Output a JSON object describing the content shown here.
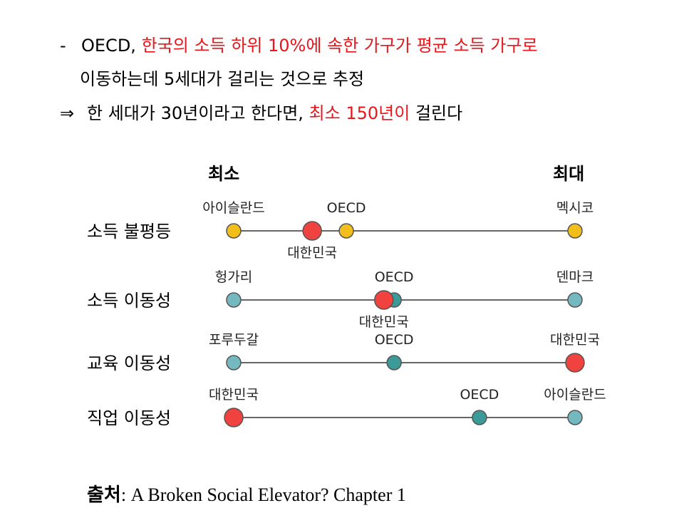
{
  "header": {
    "line1_dash": "-",
    "line1_prefix": "OECD, ",
    "line1_highlight": "한국의 소득 하위 10%에 속한 가구가 평균 소득 가구로",
    "line2": "이동하는데 5세대가 걸리는 것으로 추정",
    "line3_arrow": "⇒",
    "line3_prefix": "한 세대가 30년이라고 한다면, ",
    "line3_highlight": "최소 150년이",
    "line3_suffix": " 걸린다"
  },
  "diagram": {
    "min_label": "최소",
    "max_label": "최대",
    "colors": {
      "oecd_teal": "#3c9a98",
      "korea_red": "#f0423e",
      "gold": "#f2be1c",
      "light_teal": "#74b8c0",
      "line": "#666666"
    },
    "rows": [
      {
        "label": "소득 불평등",
        "markers": [
          {
            "name": "아이슬란드",
            "pos": 0.0,
            "color": "gold",
            "label_side": "above"
          },
          {
            "name": "대한민국",
            "pos": 0.23,
            "color": "korea_red",
            "big": true,
            "label_side": "below"
          },
          {
            "name": "OECD",
            "pos": 0.33,
            "color": "gold",
            "label_side": "above"
          },
          {
            "name": "멕시코",
            "pos": 1.0,
            "color": "gold",
            "label_side": "above"
          }
        ]
      },
      {
        "label": "소득 이동성",
        "markers": [
          {
            "name": "헝가리",
            "pos": 0.0,
            "color": "light_teal",
            "label_side": "above"
          },
          {
            "name": "OECD",
            "pos": 0.47,
            "color": "oecd_teal",
            "label_side": "above"
          },
          {
            "name": "대한민국",
            "pos": 0.44,
            "color": "korea_red",
            "big": true,
            "label_side": "below"
          },
          {
            "name": "덴마크",
            "pos": 1.0,
            "color": "light_teal",
            "label_side": "above"
          }
        ]
      },
      {
        "label": "교육 이동성",
        "markers": [
          {
            "name": "포루두갈",
            "pos": 0.0,
            "color": "light_teal",
            "label_side": "above"
          },
          {
            "name": "OECD",
            "pos": 0.47,
            "color": "oecd_teal",
            "label_side": "above"
          },
          {
            "name": "대한민국",
            "pos": 1.0,
            "color": "korea_red",
            "big": true,
            "label_side": "above"
          }
        ]
      },
      {
        "label": "직업 이동성",
        "markers": [
          {
            "name": "대한민국",
            "pos": 0.0,
            "color": "korea_red",
            "big": true,
            "label_side": "above"
          },
          {
            "name": "OECD",
            "pos": 0.72,
            "color": "oecd_teal",
            "label_side": "above"
          },
          {
            "name": "아이슬란드",
            "pos": 1.0,
            "color": "light_teal",
            "label_side": "above"
          }
        ]
      }
    ]
  },
  "source": {
    "prefix": "출처",
    "text": ": A Broken Social Elevator? Chapter 1"
  }
}
